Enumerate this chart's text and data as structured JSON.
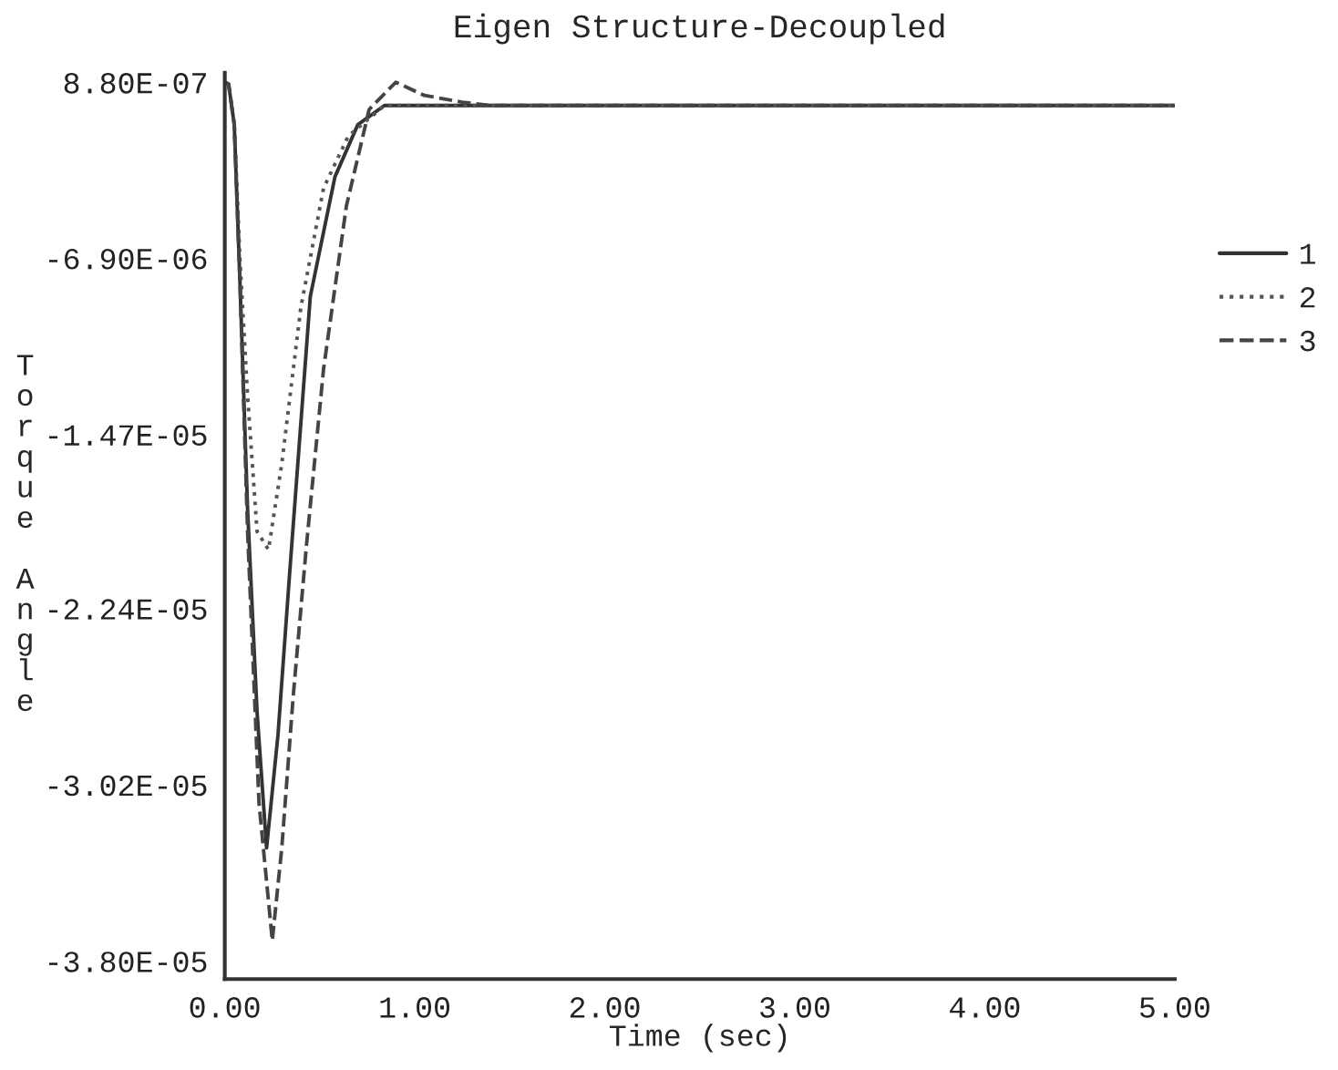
{
  "chart_data": {
    "type": "line",
    "title": "Eigen Structure-Decoupled",
    "xlabel": "Time (sec)",
    "ylabel": "Torque Angle",
    "xlim": [
      0,
      5
    ],
    "xticks": [
      {
        "value": 0,
        "label": "0.00"
      },
      {
        "value": 1,
        "label": "1.00"
      },
      {
        "value": 2,
        "label": "2.00"
      },
      {
        "value": 3,
        "label": "3.00"
      },
      {
        "value": 4,
        "label": "4.00"
      },
      {
        "value": 5,
        "label": "5.00"
      }
    ],
    "ylim": [
      -3.88e-05,
      1.3e-06
    ],
    "yticks": [
      {
        "value": 8.8e-07,
        "label": "8.80E-07"
      },
      {
        "value": -6.9e-06,
        "label": "-6.90E-06"
      },
      {
        "value": -1.47e-05,
        "label": "-1.47E-05"
      },
      {
        "value": -2.24e-05,
        "label": "-2.24E-05"
      },
      {
        "value": -3.02e-05,
        "label": "-3.02E-05"
      },
      {
        "value": -3.8e-05,
        "label": "-3.80E-05"
      }
    ],
    "legend": "right",
    "grid": false,
    "series": [
      {
        "name": "1",
        "color": "#333333",
        "line_style": "solid",
        "x": [
          0,
          0.02,
          0.05,
          0.08,
          0.12,
          0.17,
          0.22,
          0.28,
          0.34,
          0.45,
          0.58,
          0.7,
          0.84,
          1.0,
          2.0,
          3.0,
          4.0,
          5.0
        ],
        "values": [
          8.8e-07,
          8e-07,
          -1e-06,
          -8e-06,
          -1.8e-05,
          -2.7e-05,
          -3.3e-05,
          -2.8e-05,
          -2.1e-05,
          -8.6e-06,
          -3.3e-06,
          -1e-06,
          -1.5e-07,
          -1.5e-07,
          -1.5e-07,
          -1.5e-07,
          -1.5e-07,
          -1.5e-07
        ]
      },
      {
        "name": "2",
        "color": "#555555",
        "line_style": "dotted",
        "x": [
          0,
          0.02,
          0.05,
          0.08,
          0.12,
          0.17,
          0.23,
          0.3,
          0.4,
          0.52,
          0.65,
          0.84,
          1.0,
          2.0,
          3.0,
          4.0,
          5.0
        ],
        "values": [
          8.8e-07,
          8e-07,
          -1e-06,
          -7e-06,
          -1.3e-05,
          -1.9e-05,
          -1.98e-05,
          -1.6e-05,
          -9.1e-06,
          -3.8e-06,
          -1.5e-06,
          -1.5e-07,
          -1.5e-07,
          -1.5e-07,
          -1.5e-07,
          -1.5e-07,
          -1.5e-07
        ]
      },
      {
        "name": "3",
        "color": "#444444",
        "line_style": "dashed",
        "x": [
          0,
          0.02,
          0.05,
          0.08,
          0.12,
          0.18,
          0.25,
          0.3,
          0.36,
          0.43,
          0.52,
          0.64,
          0.76,
          0.9,
          1.05,
          1.25,
          1.4,
          2.0,
          3.0,
          4.0,
          5.0
        ],
        "values": [
          8.8e-07,
          8e-07,
          -1e-06,
          -8e-06,
          -1.9e-05,
          -3.1e-05,
          -3.71e-05,
          -3.3e-05,
          -2.63e-05,
          -1.96e-05,
          -1.18e-05,
          -4.6e-06,
          -3.2e-07,
          8.8e-07,
          3e-07,
          0,
          -1.5e-07,
          -1.5e-07,
          -1.5e-07,
          -1.5e-07,
          -1.5e-07
        ]
      }
    ]
  }
}
